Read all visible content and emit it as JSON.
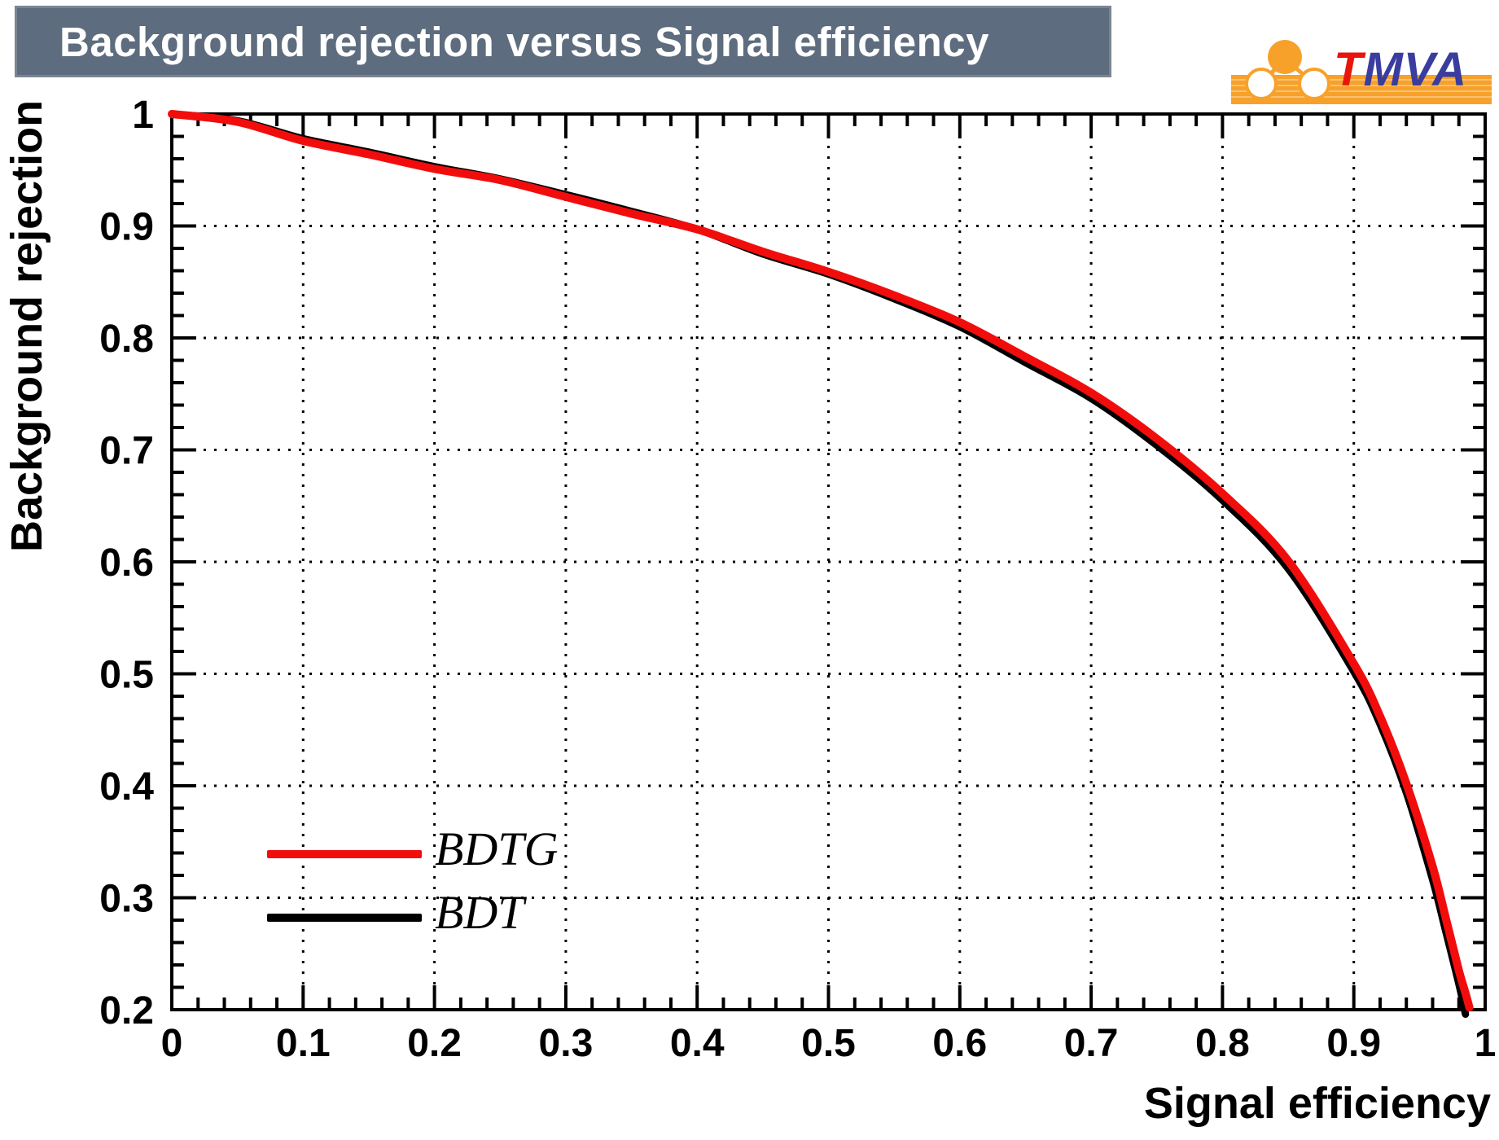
{
  "title_banner": {
    "text": "Background rejection versus Signal efficiency",
    "bg_color": "#5d6c7e",
    "border_color": "#7a8591",
    "text_color": "#ffffff"
  },
  "logo": {
    "t": "T",
    "mva": "MVA",
    "t_color": "#e8150d",
    "mva_color": "#3a3d9e",
    "bar_color": "#f7a12a"
  },
  "chart_data": {
    "type": "line",
    "title": "Background rejection versus Signal efficiency",
    "xlabel": "Signal efficiency",
    "ylabel": "Background rejection",
    "xlim": [
      0,
      1
    ],
    "ylim": [
      0.2,
      1.0
    ],
    "grid": "dotted",
    "grid_color": "#000000",
    "minor_tick_step": 0.02,
    "x_ticks": [
      0,
      0.1,
      0.2,
      0.3,
      0.4,
      0.5,
      0.6,
      0.7,
      0.8,
      0.9,
      1
    ],
    "x_tick_labels": [
      "0",
      "0.1",
      "0.2",
      "0.3",
      "0.4",
      "0.5",
      "0.6",
      "0.7",
      "0.8",
      "0.9",
      "1"
    ],
    "y_ticks": [
      0.2,
      0.3,
      0.4,
      0.5,
      0.6,
      0.7,
      0.8,
      0.9,
      1
    ],
    "y_tick_labels": [
      "0.2",
      "0.3",
      "0.4",
      "0.5",
      "0.6",
      "0.7",
      "0.8",
      "0.9",
      "1"
    ],
    "legend_position": "bottom-left",
    "series": [
      {
        "name": "BDTG",
        "color": "#f20d0d",
        "line_width": 10,
        "x": [
          0,
          0.05,
          0.1,
          0.15,
          0.2,
          0.25,
          0.3,
          0.35,
          0.4,
          0.45,
          0.5,
          0.55,
          0.6,
          0.65,
          0.7,
          0.75,
          0.8,
          0.85,
          0.9,
          0.92,
          0.94,
          0.96,
          0.97,
          0.98,
          0.985,
          0.988
        ],
        "y": [
          1.0,
          0.993,
          0.976,
          0.964,
          0.951,
          0.941,
          0.926,
          0.911,
          0.897,
          0.877,
          0.859,
          0.838,
          0.814,
          0.783,
          0.751,
          0.71,
          0.661,
          0.601,
          0.509,
          0.462,
          0.402,
          0.328,
          0.282,
          0.235,
          0.215,
          0.202
        ]
      },
      {
        "name": "BDT",
        "color": "#000000",
        "line_width": 9,
        "x": [
          0,
          0.05,
          0.1,
          0.15,
          0.2,
          0.25,
          0.3,
          0.35,
          0.4,
          0.45,
          0.5,
          0.55,
          0.6,
          0.65,
          0.7,
          0.75,
          0.8,
          0.85,
          0.9,
          0.92,
          0.94,
          0.96,
          0.97,
          0.98,
          0.985
        ],
        "y": [
          1.0,
          0.994,
          0.978,
          0.966,
          0.953,
          0.942,
          0.928,
          0.913,
          0.897,
          0.875,
          0.857,
          0.835,
          0.81,
          0.778,
          0.746,
          0.704,
          0.655,
          0.594,
          0.502,
          0.455,
          0.394,
          0.316,
          0.27,
          0.223,
          0.196
        ]
      }
    ]
  }
}
